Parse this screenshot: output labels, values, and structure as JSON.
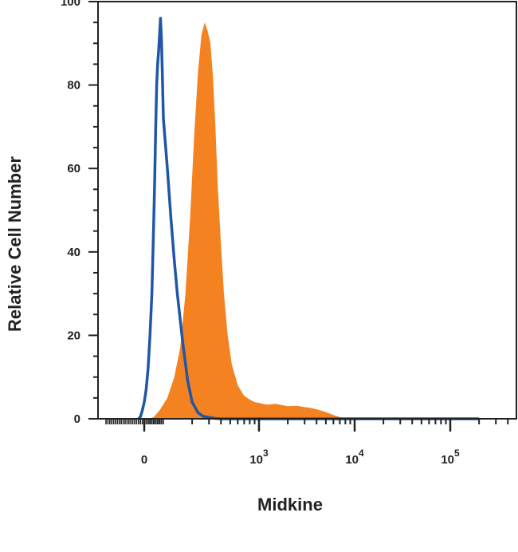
{
  "chart_data": {
    "type": "area",
    "xlabel": "Midkine",
    "ylabel": "Relative Cell Number",
    "ylim": [
      0,
      100
    ],
    "x_scale": "biexponential",
    "grid": false,
    "y_ticks": [
      "0",
      "20",
      "40",
      "60",
      "80",
      "100"
    ],
    "x_ticks": [
      {
        "base": "0",
        "exp": ""
      },
      {
        "base": "10",
        "exp": "3"
      },
      {
        "base": "10",
        "exp": "4"
      },
      {
        "base": "10",
        "exp": "5"
      }
    ],
    "colors": {
      "filled": "#f58220",
      "outline": "#1f57a6",
      "axis": "#222222"
    },
    "series": [
      {
        "style": "filled",
        "color": "#f58220",
        "x": [
          -20,
          20,
          50,
          80,
          110,
          130,
          150,
          170,
          190,
          210,
          230,
          250,
          270,
          290,
          310,
          330,
          350,
          370,
          400,
          430,
          470,
          520,
          600,
          700,
          800,
          900,
          1000,
          1200,
          1500,
          2000,
          2500,
          3000,
          3500,
          4000,
          5000,
          6000,
          7000,
          8000,
          10000,
          20000,
          100000,
          200000
        ],
        "y": [
          0,
          0,
          0.4,
          2,
          5,
          10,
          17,
          30,
          48,
          68,
          83,
          92,
          95,
          93,
          90,
          82,
          70,
          56,
          42,
          30,
          20,
          13,
          8,
          5.5,
          4.6,
          4,
          3.8,
          3.4,
          3.6,
          3.0,
          3.1,
          2.8,
          2.6,
          2.3,
          1.6,
          0.9,
          0.4,
          0.1,
          0,
          0,
          0,
          0
        ]
      },
      {
        "style": "outline",
        "color": "#1f57a6",
        "x": [
          -30,
          -20,
          -10,
          0,
          10,
          20,
          30,
          40,
          50,
          55,
          60,
          65,
          70,
          75,
          80,
          85,
          90,
          95,
          100,
          110,
          120,
          130,
          140,
          160,
          180,
          200,
          230,
          260,
          300,
          350,
          400,
          500,
          1000,
          10000,
          200000
        ],
        "y": [
          0,
          0.5,
          2,
          4,
          7,
          12,
          20,
          30,
          48,
          58,
          70,
          80,
          85,
          88,
          92,
          96,
          91,
          82,
          72,
          60,
          48,
          38,
          30,
          18,
          9,
          4,
          1.5,
          0.6,
          0.3,
          0.1,
          0,
          0,
          0,
          0,
          0
        ]
      }
    ]
  }
}
